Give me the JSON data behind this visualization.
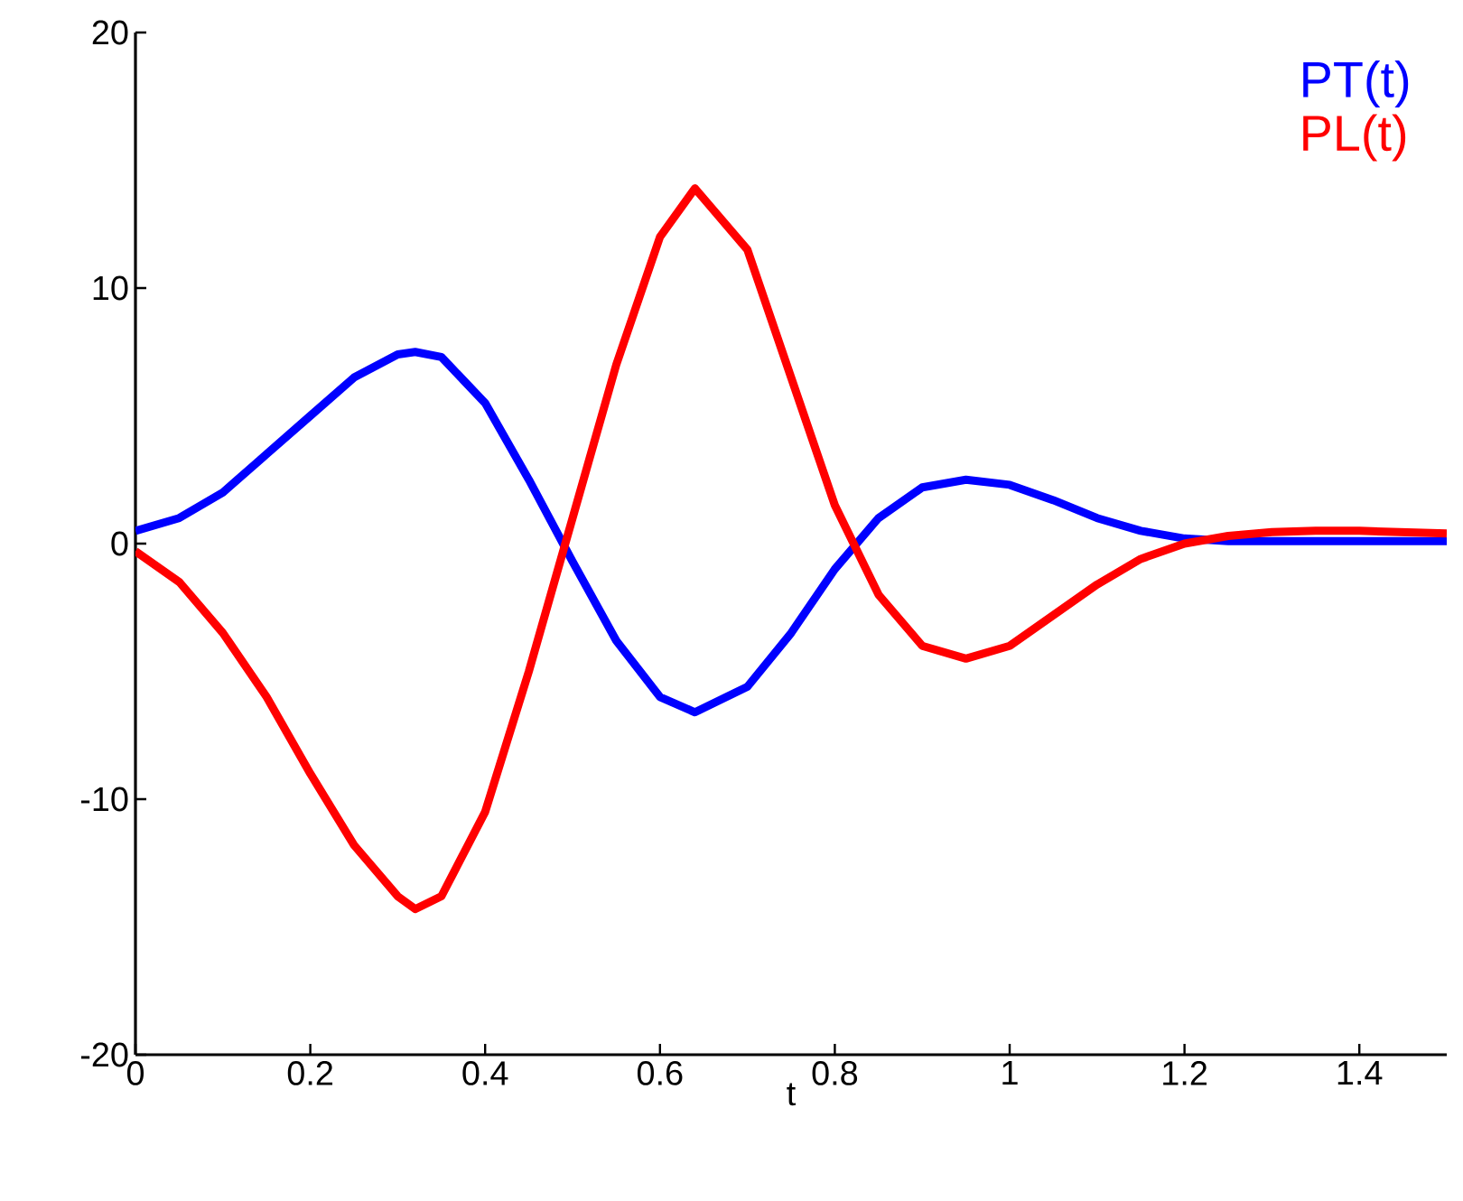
{
  "chart_data": {
    "type": "line",
    "xlabel": "t",
    "x": [
      0,
      0.05,
      0.1,
      0.15,
      0.2,
      0.25,
      0.3,
      0.32,
      0.35,
      0.4,
      0.45,
      0.5,
      0.55,
      0.6,
      0.64,
      0.7,
      0.75,
      0.8,
      0.85,
      0.9,
      0.95,
      1.0,
      1.05,
      1.1,
      1.15,
      1.2,
      1.25,
      1.3,
      1.35,
      1.4,
      1.5
    ],
    "series": [
      {
        "name": "PT(t)",
        "color": "#0000ff",
        "values": [
          0.5,
          1.0,
          2.0,
          3.5,
          5.0,
          6.5,
          7.4,
          7.5,
          7.3,
          5.5,
          2.5,
          -0.7,
          -3.8,
          -6.0,
          -6.6,
          -5.6,
          -3.5,
          -1.0,
          1.0,
          2.2,
          2.5,
          2.3,
          1.7,
          1.0,
          0.5,
          0.2,
          0.1,
          0.1,
          0.1,
          0.1,
          0.1
        ]
      },
      {
        "name": "PL(t)",
        "color": "#ff0000",
        "values": [
          -0.3,
          -1.5,
          -3.5,
          -6.0,
          -9.0,
          -11.8,
          -13.8,
          -14.3,
          -13.8,
          -10.5,
          -5.0,
          1.0,
          7.0,
          12.0,
          13.9,
          11.5,
          6.5,
          1.5,
          -2.0,
          -4.0,
          -4.5,
          -4.0,
          -2.8,
          -1.6,
          -0.6,
          0.0,
          0.3,
          0.45,
          0.5,
          0.5,
          0.4
        ]
      }
    ],
    "xlim": [
      0,
      1.5
    ],
    "ylim": [
      -20,
      20
    ],
    "xticks": [
      0,
      0.2,
      0.4,
      0.6,
      0.8,
      1,
      1.2,
      1.4
    ],
    "yticks": [
      -20,
      -10,
      0,
      10,
      20
    ],
    "grid": false,
    "legend": "top right",
    "line_style": "solid",
    "marker": "none"
  }
}
